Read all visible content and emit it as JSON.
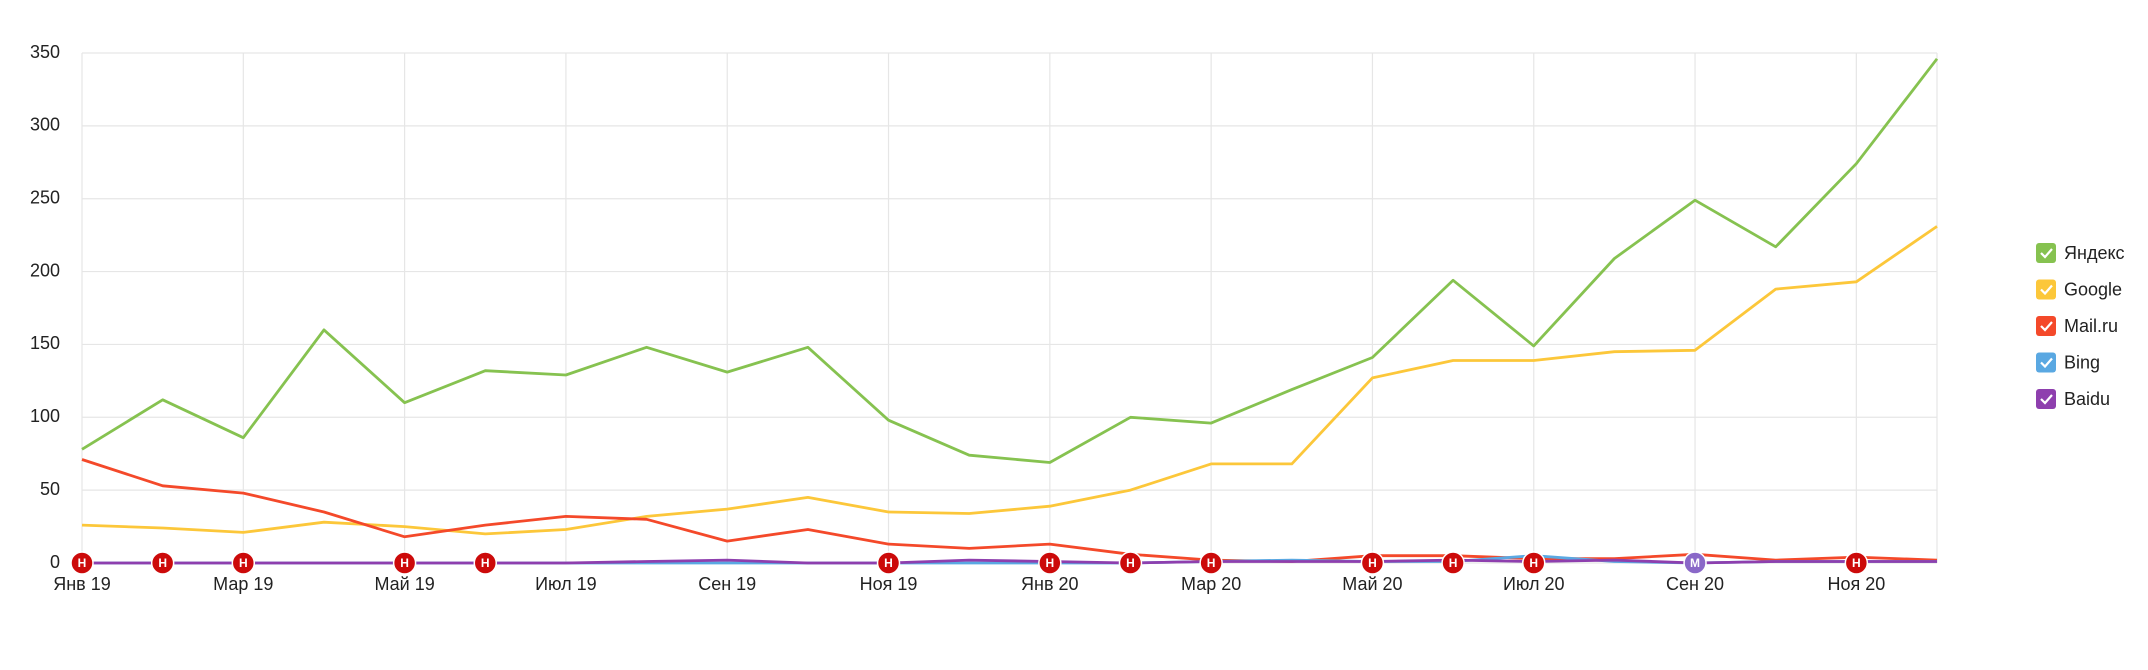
{
  "chart_data": {
    "type": "line",
    "categories": [
      "Янв 19",
      null,
      "Мар 19",
      null,
      "Май 19",
      null,
      "Июл 19",
      null,
      "Сен 19",
      null,
      "Ноя 19",
      null,
      "Янв 20",
      null,
      "Мар 20",
      null,
      "Май 20",
      null,
      "Июл 20",
      null,
      "Сен 20",
      null,
      "Ноя 20",
      null
    ],
    "ylim": [
      0,
      350
    ],
    "yticks": [
      0,
      50,
      100,
      150,
      200,
      250,
      300,
      350
    ],
    "grid": true,
    "legend": "right",
    "series": [
      {
        "name": "Яндекс",
        "color": "#86c250",
        "values": [
          78,
          112,
          86,
          160,
          110,
          132,
          129,
          148,
          131,
          148,
          98,
          74,
          69,
          100,
          96,
          119,
          141,
          194,
          149,
          209,
          249,
          217,
          274,
          346
        ]
      },
      {
        "name": "Google",
        "color": "#fcc73a",
        "values": [
          26,
          24,
          21,
          28,
          25,
          20,
          23,
          32,
          37,
          45,
          35,
          34,
          39,
          50,
          68,
          68,
          127,
          139,
          139,
          145,
          146,
          188,
          193,
          231
        ]
      },
      {
        "name": "Mail.ru",
        "color": "#f4492a",
        "values": [
          71,
          53,
          48,
          35,
          18,
          26,
          32,
          30,
          15,
          23,
          13,
          10,
          13,
          6,
          2,
          1,
          5,
          5,
          3,
          3,
          6,
          2,
          4,
          2
        ]
      },
      {
        "name": "Bing",
        "color": "#5aa8e2",
        "values": [
          0,
          0,
          0,
          0,
          0,
          0,
          0,
          0,
          0,
          0,
          0,
          0,
          0,
          0,
          1,
          2,
          1,
          1,
          5,
          1,
          0,
          1,
          1,
          1
        ]
      },
      {
        "name": "Baidu",
        "color": "#8e3fae",
        "values": [
          0,
          0,
          0,
          0,
          0,
          0,
          0,
          1,
          2,
          0,
          0,
          2,
          1,
          0,
          1,
          1,
          1,
          2,
          1,
          2,
          0,
          1,
          1,
          1
        ]
      }
    ],
    "annotations": [
      {
        "month": 0,
        "label": "Н"
      },
      {
        "month": 1,
        "label": "Н"
      },
      {
        "month": 2,
        "label": "Н"
      },
      {
        "month": 4,
        "label": "Н"
      },
      {
        "month": 5,
        "label": "Н"
      },
      {
        "month": 10,
        "label": "Н"
      },
      {
        "month": 12,
        "label": "Н"
      },
      {
        "month": 13,
        "label": "Н"
      },
      {
        "month": 14,
        "label": "Н"
      },
      {
        "month": 16,
        "label": "Н"
      },
      {
        "month": 17,
        "label": "Н"
      },
      {
        "month": 18,
        "label": "Н"
      },
      {
        "month": 20,
        "label": "М"
      },
      {
        "month": 22,
        "label": "Н"
      }
    ]
  }
}
